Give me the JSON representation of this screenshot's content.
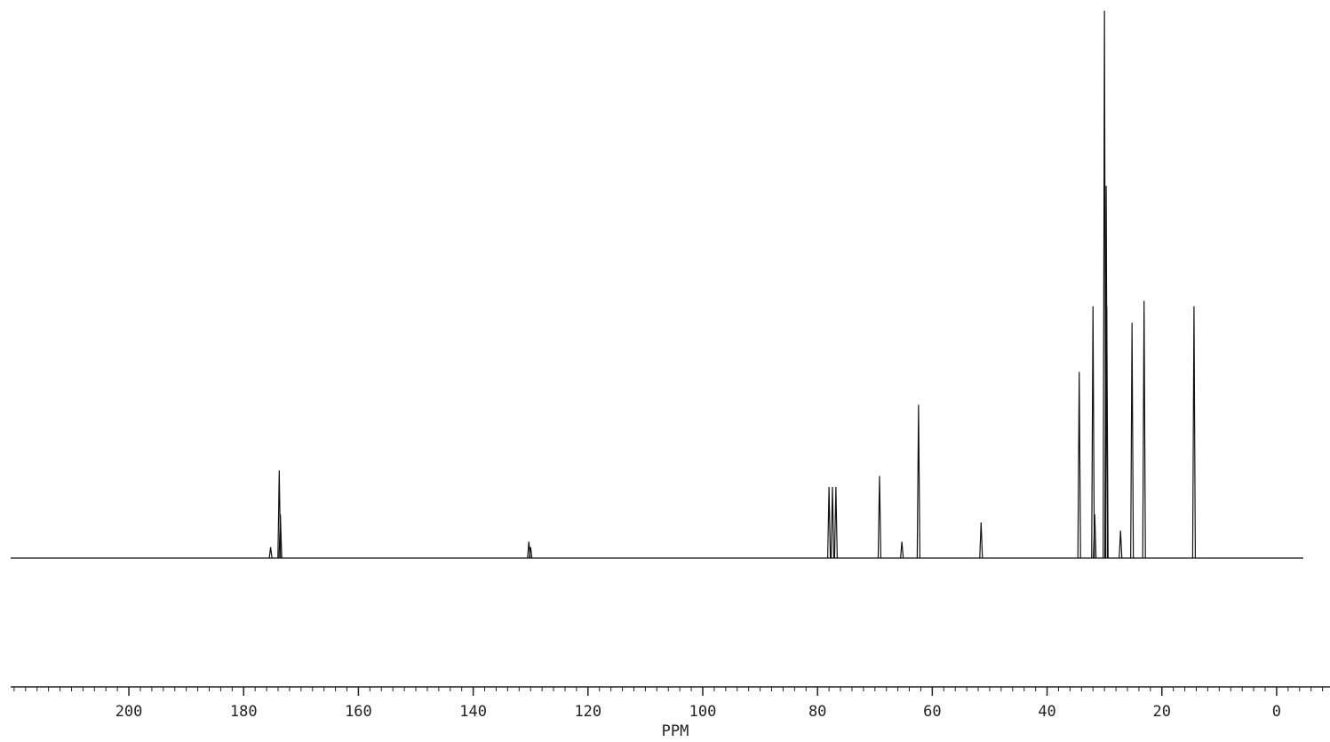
{
  "chart_data": {
    "type": "nmr",
    "x_label": "PPM",
    "x": [
      30.0,
      29.7,
      29.6,
      32.0,
      34.4,
      31.7,
      25.2,
      23.1,
      27.2,
      14.4,
      51.5,
      62.4,
      65.3,
      69.2,
      78.0,
      77.4,
      76.8,
      130.3,
      130.0,
      173.8,
      173.6,
      175.3
    ],
    "values": [
      100,
      68,
      46,
      46,
      34,
      8,
      43,
      47,
      5,
      46,
      6.5,
      28,
      3,
      15,
      13,
      13,
      13,
      3,
      2,
      16,
      8,
      2
    ],
    "xlim": [
      220.6,
      -9.3
    ],
    "xticks": [
      200,
      180,
      160,
      140,
      120,
      100,
      80,
      60,
      40,
      20,
      0
    ],
    "minor_tick_step": 2,
    "ylim": [
      0,
      100
    ],
    "color": "#111111"
  }
}
